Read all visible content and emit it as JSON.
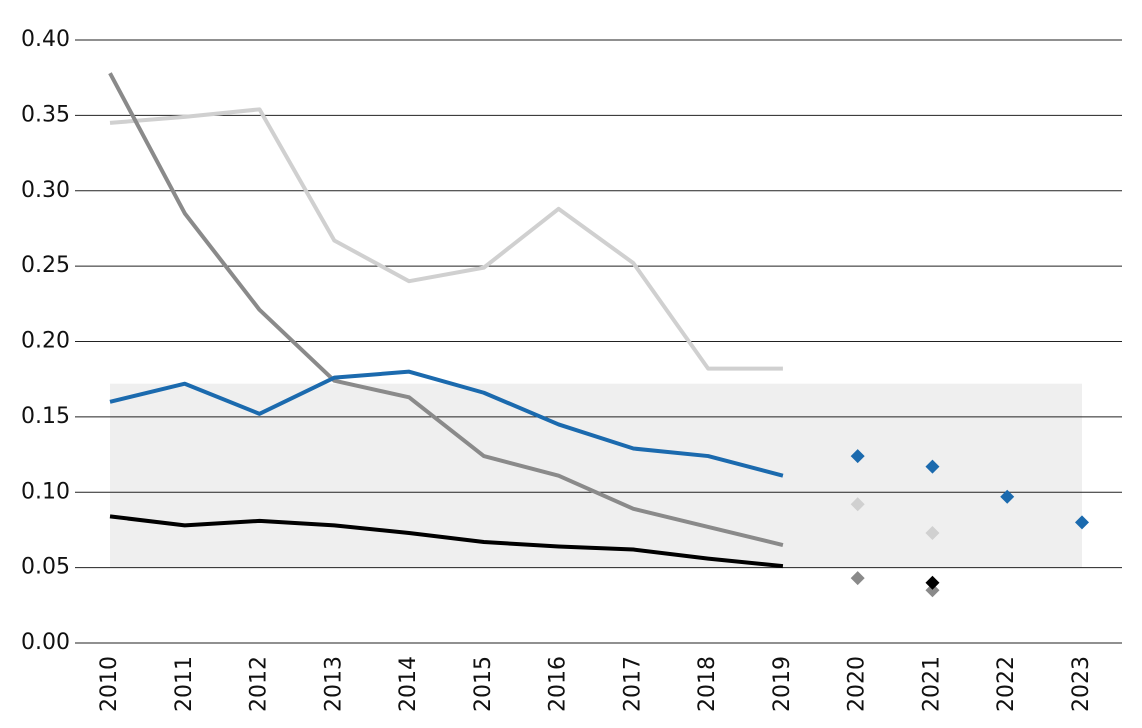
{
  "chart_data": {
    "type": "line",
    "categories": [
      "2010",
      "2011",
      "2012",
      "2013",
      "2014",
      "2015",
      "2016",
      "2017",
      "2018",
      "2019",
      "2020",
      "2021",
      "2022",
      "2023"
    ],
    "ylim": [
      0,
      0.4
    ],
    "yticks": [
      {
        "value": 0,
        "label": "0.00"
      },
      {
        "value": 0.05,
        "label": "0.05"
      },
      {
        "value": 0.1,
        "label": "0.10"
      },
      {
        "value": 0.15,
        "label": "0.15"
      },
      {
        "value": 0.2,
        "label": "0.20"
      },
      {
        "value": 0.25,
        "label": "0.25"
      },
      {
        "value": 0.3,
        "label": "0.30"
      },
      {
        "value": 0.35,
        "label": "0.35"
      },
      {
        "value": 0.4,
        "label": "0.40"
      }
    ],
    "grid": true,
    "band": {
      "range": [
        0.05,
        0.172
      ],
      "color": "#efefef"
    },
    "series": [
      {
        "color": "#d0d0d0",
        "values": [
          0.345,
          0.349,
          0.354,
          0.267,
          0.24,
          0.249,
          0.288,
          0.252,
          0.182,
          0.182,
          null,
          null,
          null,
          null
        ],
        "projections": [
          null,
          null,
          null,
          null,
          null,
          null,
          null,
          null,
          null,
          null,
          0.092,
          0.073,
          null,
          null
        ]
      },
      {
        "color": "#8a8a8a",
        "values": [
          0.378,
          0.285,
          0.221,
          0.174,
          0.163,
          0.124,
          0.111,
          0.089,
          0.077,
          0.065,
          null,
          null,
          null,
          null
        ],
        "projections": [
          null,
          null,
          null,
          null,
          null,
          null,
          null,
          null,
          null,
          null,
          0.043,
          0.035,
          null,
          null
        ]
      },
      {
        "color": "#1b6aae",
        "values": [
          0.16,
          0.172,
          0.152,
          0.176,
          0.18,
          0.166,
          0.145,
          0.129,
          0.124,
          0.111,
          null,
          null,
          null,
          null
        ],
        "projections": [
          null,
          null,
          null,
          null,
          null,
          null,
          null,
          null,
          null,
          null,
          0.124,
          0.117,
          0.097,
          0.08
        ]
      },
      {
        "color": "#000000",
        "values": [
          0.084,
          0.078,
          0.081,
          0.078,
          0.073,
          0.067,
          0.064,
          0.062,
          0.056,
          0.051,
          null,
          null,
          null,
          null
        ],
        "projections": [
          null,
          null,
          null,
          null,
          null,
          null,
          null,
          null,
          null,
          null,
          null,
          0.04,
          null,
          null
        ]
      }
    ]
  }
}
